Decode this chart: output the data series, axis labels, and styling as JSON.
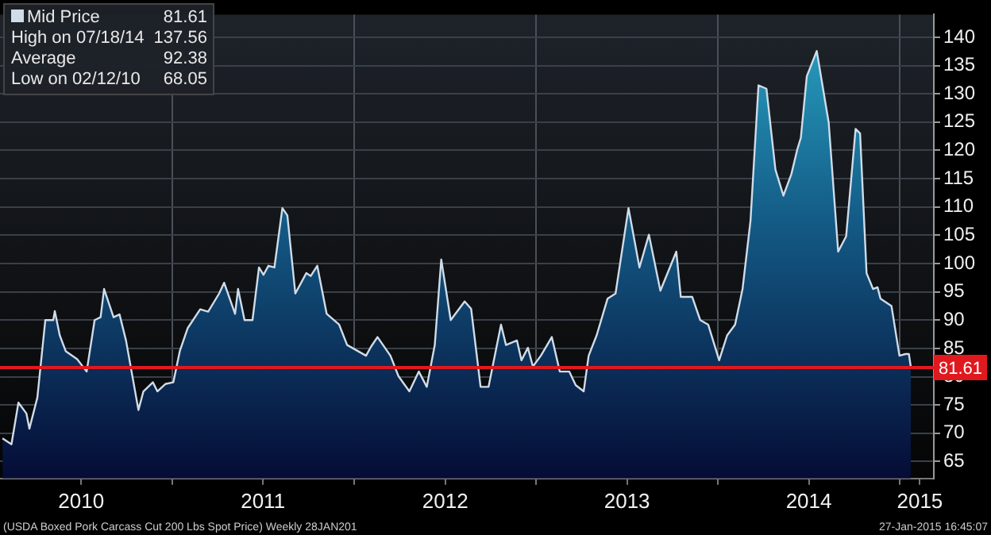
{
  "chart_data": {
    "type": "area",
    "x": [
      "2010-01-25",
      "2010-02-12",
      "2010-02-26",
      "2010-03-14",
      "2010-03-20",
      "2010-04-05",
      "2010-04-21",
      "2010-05-07",
      "2010-05-10",
      "2010-05-20",
      "2010-06-01",
      "2010-06-24",
      "2010-07-13",
      "2010-07-29",
      "2010-08-10",
      "2010-08-17",
      "2010-09-05",
      "2010-09-17",
      "2010-09-30",
      "2010-10-25",
      "2010-11-04",
      "2010-11-23",
      "2010-12-02",
      "2010-12-18",
      "2011-01-03",
      "2011-01-16",
      "2011-02-01",
      "2011-02-26",
      "2011-03-14",
      "2011-04-05",
      "2011-04-15",
      "2011-05-07",
      "2011-05-13",
      "2011-05-26",
      "2011-06-11",
      "2011-06-24",
      "2011-07-03",
      "2011-07-13",
      "2011-07-25",
      "2011-08-10",
      "2011-08-20",
      "2011-09-05",
      "2011-09-27",
      "2011-10-06",
      "2011-10-19",
      "2011-11-07",
      "2011-12-02",
      "2011-12-18",
      "2012-01-25",
      "2012-02-04",
      "2012-02-17",
      "2012-03-14",
      "2012-03-30",
      "2012-04-21",
      "2012-05-10",
      "2012-05-26",
      "2012-06-11",
      "2012-06-24",
      "2012-07-13",
      "2012-08-10",
      "2012-08-23",
      "2012-09-11",
      "2012-09-27",
      "2012-10-22",
      "2012-11-01",
      "2012-11-23",
      "2012-12-02",
      "2012-12-15",
      "2012-12-25",
      "2013-01-10",
      "2013-02-01",
      "2013-02-17",
      "2013-03-08",
      "2013-03-21",
      "2013-04-06",
      "2013-04-16",
      "2013-05-02",
      "2013-05-24",
      "2013-06-09",
      "2013-07-05",
      "2013-07-27",
      "2013-08-15",
      "2013-09-07",
      "2013-10-09",
      "2013-10-18",
      "2013-11-10",
      "2013-11-26",
      "2013-12-12",
      "2014-01-03",
      "2014-01-19",
      "2014-02-04",
      "2014-02-19",
      "2014-03-07",
      "2014-03-23",
      "2014-04-08",
      "2014-04-26",
      "2014-05-12",
      "2014-05-28",
      "2014-06-09",
      "2014-06-16",
      "2014-06-28",
      "2014-07-18",
      "2014-08-11",
      "2014-08-30",
      "2014-09-15",
      "2014-10-04",
      "2014-10-13",
      "2014-10-26",
      "2014-11-08",
      "2014-11-17",
      "2014-11-23",
      "2014-12-15",
      "2014-12-31",
      "2015-01-12",
      "2015-01-19",
      "2015-01-23"
    ],
    "series": [
      {
        "name": "Mid Price",
        "color": "#d0dce8",
        "values": [
          69.1,
          68.05,
          75.4,
          73.5,
          70.8,
          76.3,
          90.0,
          90.0,
          91.6,
          87.3,
          84.5,
          83.1,
          80.9,
          90.0,
          90.5,
          95.5,
          90.5,
          91.0,
          86.4,
          74.1,
          77.4,
          79.0,
          77.4,
          78.7,
          79.0,
          84.5,
          88.6,
          91.9,
          91.5,
          94.7,
          96.6,
          91.1,
          95.5,
          90.0,
          90.0,
          99.3,
          98.0,
          99.6,
          99.3,
          109.8,
          108.5,
          94.7,
          98.3,
          97.8,
          99.6,
          91.1,
          89.2,
          85.6,
          83.7,
          85.3,
          87.0,
          83.7,
          80.1,
          77.4,
          80.9,
          78.2,
          85.6,
          100.7,
          90.0,
          93.3,
          92.0,
          78.2,
          78.2,
          89.2,
          85.6,
          86.4,
          82.9,
          85.1,
          81.8,
          83.7,
          87.0,
          80.9,
          80.9,
          78.5,
          77.4,
          83.7,
          87.3,
          93.8,
          94.7,
          109.8,
          99.3,
          105.1,
          95.2,
          102.1,
          94.1,
          94.1,
          90.0,
          89.2,
          82.9,
          87.3,
          89.2,
          95.5,
          107.6,
          131.5,
          130.9,
          116.6,
          112.0,
          115.8,
          120.2,
          122.2,
          133.1,
          137.56,
          124.9,
          102.1,
          104.8,
          123.8,
          123.0,
          98.3,
          95.5,
          95.8,
          93.8,
          92.5,
          83.7,
          84.0,
          84.0,
          81.61
        ]
      }
    ],
    "xlim": [
      "2010-01-20",
      "2015-03-10"
    ],
    "xticks": [
      {
        "value": "2010-07-02",
        "label": "2010"
      },
      {
        "value": "2011-01-01",
        "label": null
      },
      {
        "value": "2011-07-02",
        "label": "2011"
      },
      {
        "value": "2012-01-01",
        "label": null
      },
      {
        "value": "2012-07-02",
        "label": "2012"
      },
      {
        "value": "2013-01-01",
        "label": null
      },
      {
        "value": "2013-07-02",
        "label": "2013"
      },
      {
        "value": "2014-01-01",
        "label": null
      },
      {
        "value": "2014-07-02",
        "label": "2014"
      },
      {
        "value": "2015-01-01",
        "label": null
      },
      {
        "value": "2015-02-10",
        "label": "2015"
      }
    ],
    "ylim": [
      62,
      144
    ],
    "yticks": [
      65,
      70,
      75,
      80,
      85,
      90,
      95,
      100,
      105,
      110,
      115,
      120,
      125,
      130,
      135,
      140
    ],
    "grid": true,
    "legend": "top left",
    "ref_lines": [
      {
        "axis": "y",
        "value": 81.61,
        "label": "81.61",
        "color": "#e0191f"
      }
    ],
    "annotations": [
      "High on 07/18/14 137.56",
      "Average 92.38",
      "Low on 02/12/10 68.05",
      "(USDA Boxed Pork Carcass Cut 200 Lbs Spot Price) Weekly 28JAN201",
      "27-Jan-2015 16:45:07"
    ]
  }
}
